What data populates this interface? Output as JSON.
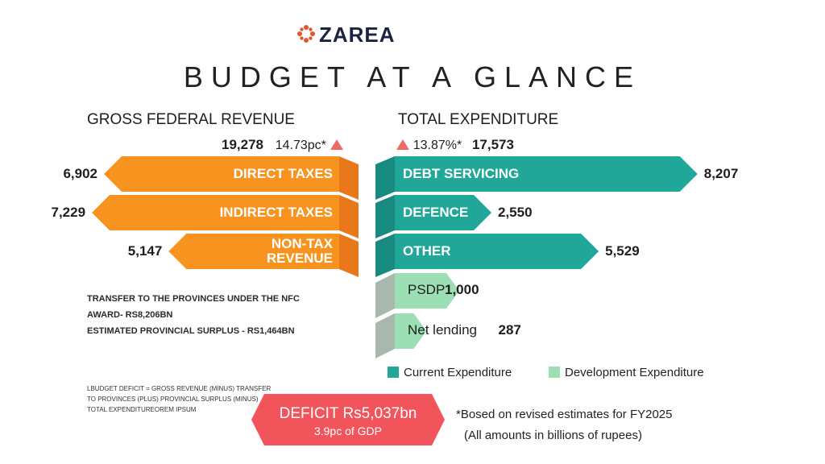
{
  "brand": {
    "name": "ZAREA"
  },
  "title": "BUDGET AT A GLANCE",
  "colors": {
    "revenue": "#f7931e",
    "revenue_dark": "#e8781a",
    "current": "#21a69a",
    "development": "#9ddfb4",
    "deficit": "#f2545b",
    "up_arrow": "#ee6a66"
  },
  "revenue": {
    "title": "GROSS FEDERAL REVENUE",
    "total": "19,278",
    "change": "14.73pc*"
  },
  "expenditure": {
    "title": "TOTAL EXPENDITURE",
    "total": "17,573",
    "change": "13.87%*"
  },
  "chart_data": [
    {
      "type": "bar",
      "title": "GROSS FEDERAL REVENUE",
      "categories": [
        "DIRECT TAXES",
        "INDIRECT TAXES",
        "NON-TAX REVENUE"
      ],
      "values": [
        6902,
        7229,
        5147
      ],
      "value_labels": [
        "6,902",
        "7,229",
        "5,147"
      ],
      "xlim": [
        0,
        8300
      ]
    },
    {
      "type": "bar",
      "title": "TOTAL EXPENDITURE",
      "categories": [
        "DEBT SERVICING",
        "DEFENCE",
        "OTHER",
        "PSDP",
        "Net lending"
      ],
      "values": [
        8207,
        2550,
        5529,
        1000,
        287
      ],
      "value_labels": [
        "8,207",
        "2,550",
        "5,529",
        "1,000",
        "287"
      ],
      "groups": [
        "current",
        "current",
        "current",
        "development",
        "development"
      ],
      "xlim": [
        0,
        8300
      ]
    }
  ],
  "notes": {
    "transfer_line1": "TRANSFER TO THE PROVINCES UNDER THE NFC",
    "transfer_line2": "AWARD- RS8,206BN",
    "surplus": "ESTIMATED PROVINCIAL SURPLUS - RS1,464BN",
    "formula_line1": "LBUDGET DEFICIT = GROSS REVENUE (MINUS) TRANSFER",
    "formula_line2": "TO PROVINCES (PLUS) PROVINCIAL SURPLUS (MINUS)",
    "formula_line3": "TOTAL EXPENDITUREOREM IPSUM"
  },
  "legend": {
    "current": "Current Expenditure",
    "development": "Development Expenditure"
  },
  "deficit": {
    "label": "DEFICIT Rs5,037bn",
    "sub": "3.9pc of GDP"
  },
  "footnote": {
    "line1": "*Bosed on revised estimates for FY2025",
    "line2": "(All amounts in billions of rupees)"
  }
}
